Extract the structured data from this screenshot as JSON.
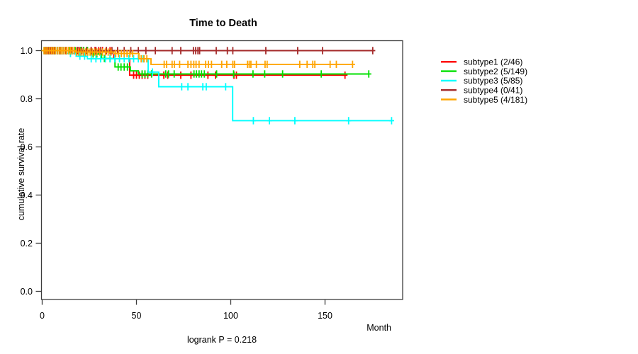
{
  "chart_data": {
    "type": "line",
    "subtype": "kaplan-meier-step",
    "title": "Time to Death",
    "ylabel": "cumulative survival rate",
    "xlabel_unit": "Month",
    "footnote": "logrank P = 0.218",
    "xlim": [
      0,
      191
    ],
    "ylim": [
      0,
      1.04
    ],
    "grid": false,
    "legend_position": "right-outside",
    "x_ticks": [
      {
        "v": 0,
        "label": "0"
      },
      {
        "v": 50,
        "label": "50"
      },
      {
        "v": 100,
        "label": "100"
      },
      {
        "v": 150,
        "label": "150"
      }
    ],
    "y_ticks": [
      {
        "v": 0.0,
        "label": "0.0"
      },
      {
        "v": 0.2,
        "label": "0.2"
      },
      {
        "v": 0.4,
        "label": "0.4"
      },
      {
        "v": 0.6,
        "label": "0.6"
      },
      {
        "v": 0.8,
        "label": "0.8"
      },
      {
        "v": 1.0,
        "label": "1.0"
      }
    ],
    "series": [
      {
        "name": "subtype1",
        "label": "subtype1 (2/46)",
        "events": "2/46",
        "color": "#ff0000",
        "steps": [
          [
            0,
            1
          ],
          [
            38,
            1
          ],
          [
            38,
            0.966
          ],
          [
            46.4,
            0.966
          ],
          [
            46.4,
            0.898
          ],
          [
            160.8,
            0.898
          ]
        ],
        "censor_months": [
          1.5,
          2.5,
          3.5,
          4.5,
          5.5,
          6.5,
          8,
          9,
          10,
          11,
          12.5,
          14,
          15.5,
          17,
          18.5,
          20,
          22,
          24,
          26,
          28,
          30,
          32,
          34,
          36,
          48.5,
          50,
          51.5,
          53,
          54.5,
          56,
          64.5,
          66.6,
          73.5,
          78.9,
          87.9,
          91.9,
          101.7,
          103,
          160.6
        ]
      },
      {
        "name": "subtype2",
        "label": "subtype2 (5/149)",
        "events": "5/149",
        "color": "#00e000",
        "steps": [
          [
            0,
            1
          ],
          [
            26,
            1
          ],
          [
            26,
            0.986
          ],
          [
            31.5,
            0.986
          ],
          [
            31.5,
            0.967
          ],
          [
            38.6,
            0.967
          ],
          [
            38.6,
            0.932
          ],
          [
            46.8,
            0.932
          ],
          [
            46.8,
            0.916
          ],
          [
            51,
            0.916
          ],
          [
            51,
            0.903
          ],
          [
            173.4,
            0.903
          ]
        ],
        "censor_months": [
          1,
          2,
          3,
          4,
          5,
          6,
          7,
          8,
          9,
          10,
          11,
          12,
          13,
          14.5,
          16,
          17.5,
          19,
          20.5,
          22,
          24,
          27,
          29,
          33,
          36,
          40.3,
          41.8,
          43.5,
          45.2,
          53,
          54.5,
          56,
          58,
          65.5,
          67,
          70,
          80.5,
          81.8,
          83.2,
          84.5,
          86,
          92.5,
          101.5,
          111.8,
          118,
          127.5,
          148,
          173.2
        ]
      },
      {
        "name": "subtype3",
        "label": "subtype3 (5/85)",
        "events": "5/85",
        "color": "#00ffff",
        "steps": [
          [
            0,
            1
          ],
          [
            13,
            1
          ],
          [
            13,
            0.988
          ],
          [
            18,
            0.988
          ],
          [
            18,
            0.977
          ],
          [
            24,
            0.977
          ],
          [
            24,
            0.966
          ],
          [
            56.2,
            0.966
          ],
          [
            56.2,
            0.911
          ],
          [
            61.8,
            0.911
          ],
          [
            61.8,
            0.85
          ],
          [
            101,
            0.85
          ],
          [
            101,
            0.709
          ],
          [
            185.5,
            0.709
          ]
        ],
        "censor_months": [
          2,
          3.5,
          5,
          6.5,
          8,
          9.5,
          11,
          15,
          20,
          22.5,
          26,
          28.5,
          31,
          33.5,
          36,
          38.5,
          41,
          43.5,
          46,
          48.5,
          51,
          53.5,
          58.5,
          74,
          77.3,
          85.2,
          87,
          97.3,
          112,
          120.5,
          134,
          162.5,
          185.3
        ]
      },
      {
        "name": "subtype4",
        "label": "subtype4 (0/41)",
        "events": "0/41",
        "color": "#a52a2a",
        "steps": [
          [
            0,
            1
          ],
          [
            175.5,
            1
          ]
        ],
        "censor_months": [
          2,
          3.5,
          5,
          6.5,
          8,
          9.5,
          11,
          13,
          15,
          17,
          19,
          21,
          23.5,
          26,
          28.5,
          31,
          34,
          37,
          40,
          43.5,
          47,
          51,
          55,
          60,
          68.9,
          73.5,
          80.2,
          81.4,
          82.6,
          83.5,
          92.3,
          98.2,
          101.1,
          118.6,
          135.5,
          148.7,
          175.3
        ]
      },
      {
        "name": "subtype5",
        "label": "subtype5 (4/181)",
        "events": "4/181",
        "color": "#ffa500",
        "steps": [
          [
            0,
            1
          ],
          [
            18,
            1
          ],
          [
            18,
            0.994
          ],
          [
            38,
            0.994
          ],
          [
            38,
            0.988
          ],
          [
            51.3,
            0.988
          ],
          [
            51.3,
            0.966
          ],
          [
            57.7,
            0.966
          ],
          [
            57.7,
            0.943
          ],
          [
            164.8,
            0.943
          ]
        ],
        "censor_months": [
          1,
          2,
          3,
          4,
          5,
          6,
          7,
          8,
          9,
          10,
          11,
          12,
          13,
          14,
          15,
          16,
          17,
          18.2,
          19.4,
          20.6,
          21.8,
          23,
          24.2,
          25.4,
          26.6,
          27.8,
          29,
          30.5,
          32,
          33.5,
          35,
          36.5,
          39,
          40.5,
          42,
          43.5,
          45,
          46.5,
          48,
          52.5,
          54,
          55.5,
          64.7,
          66,
          68.9,
          70.1,
          72.9,
          77.3,
          78.9,
          80.4,
          81.6,
          83.2,
          86.7,
          88.2,
          89.8,
          95.2,
          97.9,
          101.1,
          102,
          108.9,
          109.8,
          110.7,
          113.6,
          118.2,
          119.3,
          136.6,
          140.5,
          143.5,
          144.6,
          152.7,
          156,
          164.6
        ]
      }
    ]
  }
}
